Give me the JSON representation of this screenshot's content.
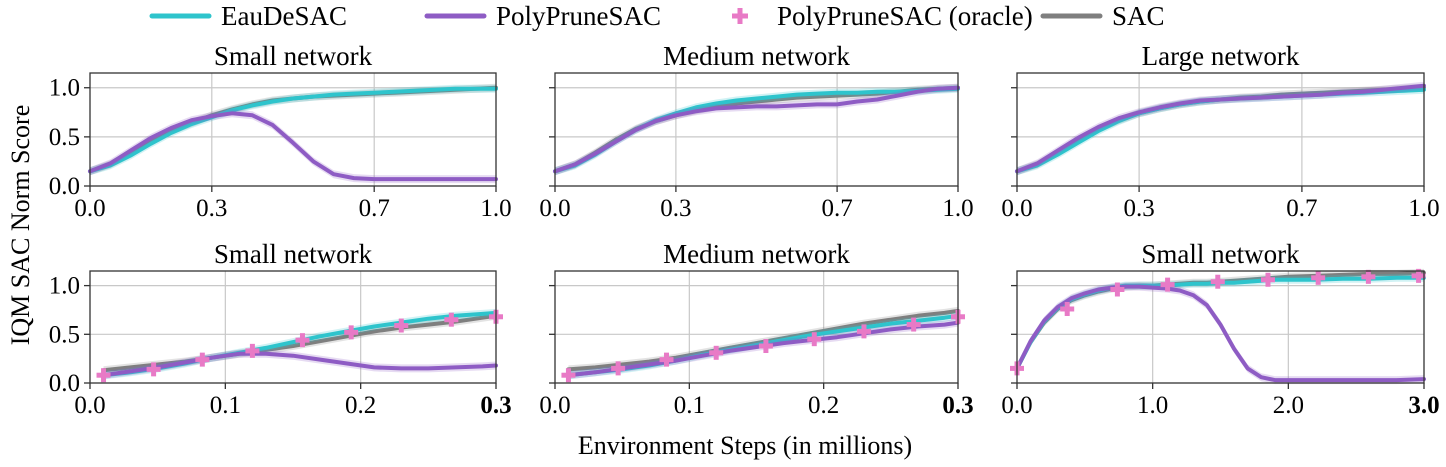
{
  "legend": [
    {
      "label": "EauDeSAC",
      "color": "#2ec4cc",
      "marker": "line"
    },
    {
      "label": "PolyPruneSAC",
      "color": "#8e5cc4",
      "marker": "line"
    },
    {
      "label": "PolyPruneSAC (oracle)",
      "color": "#e87ac6",
      "marker": "plus"
    },
    {
      "label": "SAC",
      "color": "#7f7f7f",
      "marker": "line"
    }
  ],
  "ylabel": "IQM SAC Norm Score",
  "xlabel": "Environment Steps (in millions)",
  "chart_data": [
    {
      "type": "line",
      "title": "Small network",
      "xlim": [
        0,
        1.0
      ],
      "ylim": [
        0,
        1.15
      ],
      "xticks": [
        "0.0",
        "0.3",
        "0.7",
        "1.0"
      ],
      "xtick_values": [
        0,
        0.3,
        0.7,
        1.0
      ],
      "bold_last_xtick": false,
      "yticks": [
        "0.0",
        "0.5",
        "1.0"
      ],
      "ytick_values": [
        0,
        0.5,
        1.0
      ],
      "show_yticks": true,
      "x": [
        0.0,
        0.05,
        0.1,
        0.15,
        0.2,
        0.25,
        0.3,
        0.35,
        0.4,
        0.45,
        0.5,
        0.55,
        0.6,
        0.65,
        0.7,
        0.75,
        0.8,
        0.85,
        0.9,
        0.95,
        1.0
      ],
      "series": [
        {
          "name": "SAC",
          "color": "#7f7f7f",
          "values": [
            0.15,
            0.22,
            0.33,
            0.45,
            0.56,
            0.64,
            0.72,
            0.78,
            0.83,
            0.87,
            0.89,
            0.91,
            0.92,
            0.93,
            0.94,
            0.95,
            0.96,
            0.97,
            0.98,
            0.99,
            1.0
          ]
        },
        {
          "name": "EauDeSAC",
          "color": "#2ec4cc",
          "values": [
            0.15,
            0.21,
            0.31,
            0.43,
            0.54,
            0.63,
            0.7,
            0.77,
            0.82,
            0.86,
            0.89,
            0.91,
            0.93,
            0.94,
            0.95,
            0.96,
            0.97,
            0.98,
            0.99,
            0.99,
            0.99
          ]
        },
        {
          "name": "PolyPruneSAC",
          "color": "#8e5cc4",
          "values": [
            0.15,
            0.23,
            0.36,
            0.49,
            0.59,
            0.67,
            0.71,
            0.74,
            0.72,
            0.62,
            0.44,
            0.25,
            0.12,
            0.08,
            0.07,
            0.07,
            0.07,
            0.07,
            0.07,
            0.07,
            0.07
          ]
        }
      ],
      "oracle": []
    },
    {
      "type": "line",
      "title": "Medium network",
      "xlim": [
        0,
        1.0
      ],
      "ylim": [
        0,
        1.15
      ],
      "xticks": [
        "0.0",
        "0.3",
        "0.7",
        "1.0"
      ],
      "xtick_values": [
        0,
        0.3,
        0.7,
        1.0
      ],
      "bold_last_xtick": false,
      "yticks": [
        "0.0",
        "0.5",
        "1.0"
      ],
      "ytick_values": [
        0,
        0.5,
        1.0
      ],
      "show_yticks": false,
      "x": [
        0.0,
        0.05,
        0.1,
        0.15,
        0.2,
        0.25,
        0.3,
        0.35,
        0.4,
        0.45,
        0.5,
        0.55,
        0.6,
        0.65,
        0.7,
        0.75,
        0.8,
        0.85,
        0.9,
        0.95,
        1.0
      ],
      "series": [
        {
          "name": "SAC",
          "color": "#7f7f7f",
          "values": [
            0.15,
            0.22,
            0.34,
            0.47,
            0.58,
            0.66,
            0.72,
            0.77,
            0.81,
            0.84,
            0.86,
            0.88,
            0.9,
            0.91,
            0.92,
            0.93,
            0.94,
            0.96,
            0.98,
            0.99,
            1.0
          ]
        },
        {
          "name": "EauDeSAC",
          "color": "#2ec4cc",
          "values": [
            0.15,
            0.21,
            0.32,
            0.45,
            0.57,
            0.67,
            0.74,
            0.8,
            0.84,
            0.87,
            0.89,
            0.91,
            0.93,
            0.94,
            0.95,
            0.95,
            0.96,
            0.96,
            0.97,
            0.98,
            0.99
          ]
        },
        {
          "name": "PolyPruneSAC",
          "color": "#8e5cc4",
          "values": [
            0.15,
            0.22,
            0.33,
            0.45,
            0.57,
            0.66,
            0.72,
            0.76,
            0.79,
            0.8,
            0.81,
            0.81,
            0.82,
            0.83,
            0.83,
            0.86,
            0.88,
            0.92,
            0.96,
            0.99,
            1.0
          ]
        }
      ],
      "oracle": []
    },
    {
      "type": "line",
      "title": "Large network",
      "xlim": [
        0,
        1.0
      ],
      "ylim": [
        0,
        1.15
      ],
      "xticks": [
        "0.0",
        "0.3",
        "0.7",
        "1.0"
      ],
      "xtick_values": [
        0,
        0.3,
        0.7,
        1.0
      ],
      "bold_last_xtick": false,
      "yticks": [
        "0.0",
        "0.5",
        "1.0"
      ],
      "ytick_values": [
        0,
        0.5,
        1.0
      ],
      "show_yticks": false,
      "x": [
        0.0,
        0.05,
        0.1,
        0.15,
        0.2,
        0.25,
        0.3,
        0.35,
        0.4,
        0.45,
        0.5,
        0.55,
        0.6,
        0.65,
        0.7,
        0.75,
        0.8,
        0.85,
        0.9,
        0.95,
        1.0
      ],
      "series": [
        {
          "name": "SAC",
          "color": "#7f7f7f",
          "values": [
            0.15,
            0.22,
            0.34,
            0.46,
            0.58,
            0.67,
            0.74,
            0.79,
            0.83,
            0.86,
            0.88,
            0.9,
            0.91,
            0.93,
            0.94,
            0.95,
            0.96,
            0.97,
            0.98,
            0.99,
            1.0
          ]
        },
        {
          "name": "EauDeSAC",
          "color": "#2ec4cc",
          "values": [
            0.15,
            0.21,
            0.32,
            0.44,
            0.56,
            0.66,
            0.74,
            0.79,
            0.83,
            0.86,
            0.88,
            0.89,
            0.9,
            0.91,
            0.92,
            0.93,
            0.94,
            0.95,
            0.96,
            0.97,
            0.98
          ]
        },
        {
          "name": "PolyPruneSAC",
          "color": "#8e5cc4",
          "values": [
            0.15,
            0.23,
            0.36,
            0.49,
            0.6,
            0.69,
            0.75,
            0.8,
            0.84,
            0.87,
            0.88,
            0.89,
            0.9,
            0.91,
            0.92,
            0.93,
            0.95,
            0.96,
            0.98,
            1.0,
            1.02
          ]
        }
      ],
      "oracle": []
    },
    {
      "type": "line",
      "title": "Small network",
      "xlim": [
        0,
        0.3
      ],
      "ylim": [
        0,
        1.15
      ],
      "xticks": [
        "0.0",
        "0.1",
        "0.2",
        "0.3"
      ],
      "xtick_values": [
        0,
        0.1,
        0.2,
        0.3
      ],
      "bold_last_xtick": true,
      "yticks": [
        "0.0",
        "0.5",
        "1.0"
      ],
      "ytick_values": [
        0,
        0.5,
        1.0
      ],
      "show_yticks": true,
      "x": [
        0.01,
        0.03,
        0.05,
        0.07,
        0.09,
        0.11,
        0.13,
        0.15,
        0.17,
        0.19,
        0.21,
        0.23,
        0.25,
        0.27,
        0.29,
        0.3
      ],
      "series": [
        {
          "name": "SAC",
          "color": "#7f7f7f",
          "values": [
            0.13,
            0.16,
            0.19,
            0.22,
            0.26,
            0.3,
            0.34,
            0.38,
            0.43,
            0.48,
            0.53,
            0.57,
            0.6,
            0.63,
            0.67,
            0.69
          ]
        },
        {
          "name": "EauDeSAC",
          "color": "#2ec4cc",
          "values": [
            0.08,
            0.11,
            0.15,
            0.2,
            0.26,
            0.31,
            0.36,
            0.42,
            0.48,
            0.53,
            0.58,
            0.62,
            0.66,
            0.69,
            0.71,
            0.72
          ]
        },
        {
          "name": "PolyPruneSAC",
          "color": "#8e5cc4",
          "values": [
            0.08,
            0.12,
            0.16,
            0.21,
            0.26,
            0.3,
            0.3,
            0.28,
            0.24,
            0.2,
            0.16,
            0.15,
            0.15,
            0.16,
            0.17,
            0.18
          ]
        }
      ],
      "oracle": {
        "name": "PolyPruneSAC (oracle)",
        "color": "#e87ac6",
        "x": [
          0.01,
          0.047,
          0.083,
          0.12,
          0.157,
          0.193,
          0.23,
          0.267,
          0.3
        ],
        "values": [
          0.08,
          0.14,
          0.24,
          0.33,
          0.44,
          0.52,
          0.59,
          0.65,
          0.68
        ]
      }
    },
    {
      "type": "line",
      "title": "Medium network",
      "xlim": [
        0,
        0.3
      ],
      "ylim": [
        0,
        1.15
      ],
      "xticks": [
        "0.0",
        "0.1",
        "0.2",
        "0.3"
      ],
      "xtick_values": [
        0,
        0.1,
        0.2,
        0.3
      ],
      "bold_last_xtick": true,
      "yticks": [
        "0.0",
        "0.5",
        "1.0"
      ],
      "ytick_values": [
        0,
        0.5,
        1.0
      ],
      "show_yticks": false,
      "x": [
        0.01,
        0.03,
        0.05,
        0.07,
        0.09,
        0.11,
        0.13,
        0.15,
        0.17,
        0.19,
        0.21,
        0.23,
        0.25,
        0.27,
        0.29,
        0.3
      ],
      "series": [
        {
          "name": "SAC",
          "color": "#7f7f7f",
          "values": [
            0.14,
            0.16,
            0.19,
            0.22,
            0.26,
            0.31,
            0.36,
            0.41,
            0.46,
            0.51,
            0.56,
            0.61,
            0.65,
            0.69,
            0.72,
            0.74
          ]
        },
        {
          "name": "EauDeSAC",
          "color": "#2ec4cc",
          "values": [
            0.08,
            0.11,
            0.14,
            0.18,
            0.23,
            0.29,
            0.34,
            0.39,
            0.44,
            0.49,
            0.53,
            0.57,
            0.61,
            0.64,
            0.67,
            0.69
          ]
        },
        {
          "name": "PolyPruneSAC",
          "color": "#8e5cc4",
          "values": [
            0.08,
            0.11,
            0.15,
            0.19,
            0.23,
            0.28,
            0.33,
            0.37,
            0.41,
            0.44,
            0.47,
            0.51,
            0.55,
            0.58,
            0.6,
            0.62
          ]
        }
      ],
      "oracle": {
        "name": "PolyPruneSAC (oracle)",
        "color": "#e87ac6",
        "x": [
          0.01,
          0.047,
          0.083,
          0.12,
          0.157,
          0.193,
          0.23,
          0.267,
          0.3
        ],
        "values": [
          0.08,
          0.15,
          0.24,
          0.31,
          0.38,
          0.45,
          0.53,
          0.6,
          0.68
        ]
      }
    },
    {
      "type": "line",
      "title": "Small network",
      "xlim": [
        0,
        3.0
      ],
      "ylim": [
        0,
        1.15
      ],
      "xticks": [
        "0.0",
        "1.0",
        "2.0",
        "3.0"
      ],
      "xtick_values": [
        0,
        1.0,
        2.0,
        3.0
      ],
      "bold_last_xtick": true,
      "yticks": [
        "0.0",
        "0.5",
        "1.0"
      ],
      "ytick_values": [
        0,
        0.5,
        1.0
      ],
      "show_yticks": false,
      "x": [
        0.0,
        0.1,
        0.2,
        0.3,
        0.4,
        0.5,
        0.6,
        0.7,
        0.8,
        0.9,
        1.0,
        1.1,
        1.2,
        1.3,
        1.4,
        1.5,
        1.6,
        1.7,
        1.8,
        1.9,
        2.0,
        2.2,
        2.4,
        2.6,
        2.8,
        3.0
      ],
      "series": [
        {
          "name": "SAC",
          "color": "#7f7f7f",
          "values": [
            0.15,
            0.42,
            0.62,
            0.76,
            0.85,
            0.9,
            0.94,
            0.97,
            0.99,
            1.0,
            1.0,
            1.01,
            1.02,
            1.03,
            1.03,
            1.04,
            1.05,
            1.06,
            1.07,
            1.08,
            1.09,
            1.1,
            1.11,
            1.12,
            1.12,
            1.13
          ]
        },
        {
          "name": "EauDeSAC",
          "color": "#2ec4cc",
          "values": [
            0.15,
            0.42,
            0.63,
            0.77,
            0.86,
            0.91,
            0.95,
            0.98,
            1.0,
            1.0,
            1.0,
            1.0,
            1.01,
            1.02,
            1.02,
            1.03,
            1.03,
            1.04,
            1.05,
            1.06,
            1.06,
            1.06,
            1.07,
            1.07,
            1.08,
            1.08
          ]
        },
        {
          "name": "PolyPruneSAC",
          "color": "#8e5cc4",
          "values": [
            0.15,
            0.43,
            0.64,
            0.78,
            0.87,
            0.92,
            0.96,
            0.98,
            0.99,
            0.99,
            0.98,
            0.97,
            0.95,
            0.9,
            0.8,
            0.6,
            0.35,
            0.15,
            0.06,
            0.03,
            0.03,
            0.03,
            0.03,
            0.03,
            0.03,
            0.04
          ]
        }
      ],
      "oracle": {
        "name": "PolyPruneSAC (oracle)",
        "color": "#e87ac6",
        "x": [
          0.0,
          0.37,
          0.74,
          1.11,
          1.48,
          1.85,
          2.22,
          2.59,
          2.96
        ],
        "values": [
          0.15,
          0.76,
          0.96,
          1.01,
          1.04,
          1.06,
          1.08,
          1.09,
          1.1
        ]
      }
    }
  ]
}
